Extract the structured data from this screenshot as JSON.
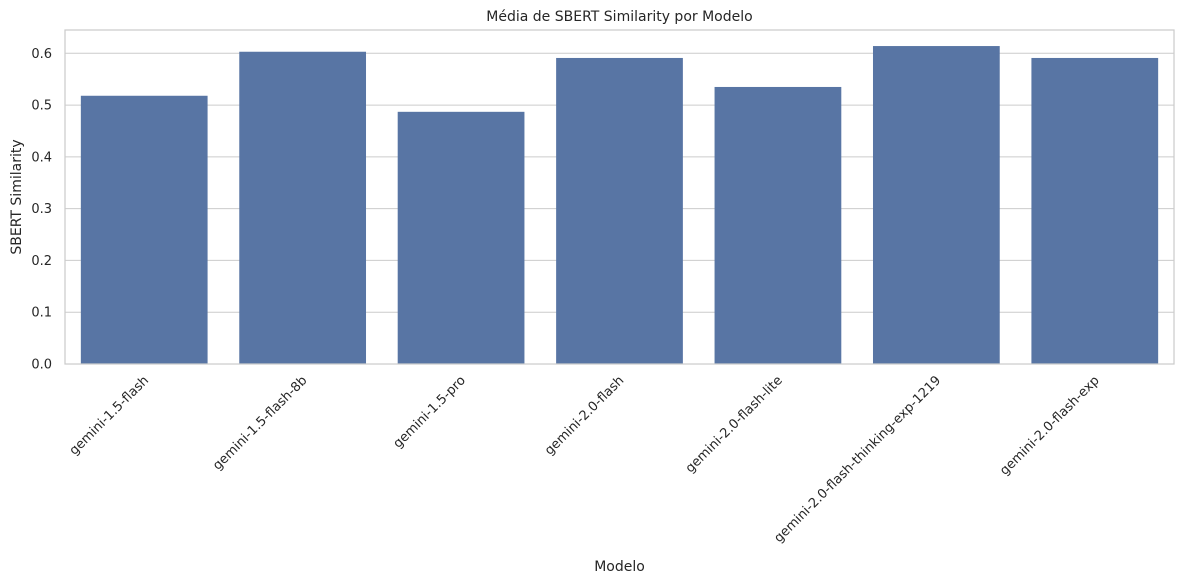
{
  "chart_data": {
    "type": "bar",
    "title": "Média de SBERT Similarity por Modelo",
    "xlabel": "Modelo",
    "ylabel": "SBERT Similarity",
    "categories": [
      "gemini-1.5-flash",
      "gemini-1.5-flash-8b",
      "gemini-1.5-pro",
      "gemini-2.0-flash",
      "gemini-2.0-flash-lite",
      "gemini-2.0-flash-thinking-exp-1219",
      "gemini-2.0-flash-exp"
    ],
    "values": [
      0.518,
      0.603,
      0.487,
      0.591,
      0.535,
      0.614,
      0.591
    ],
    "ylim": [
      0,
      0.645
    ],
    "yticks": [
      "0.0",
      "0.1",
      "0.2",
      "0.3",
      "0.4",
      "0.5",
      "0.6"
    ],
    "grid": true,
    "bar_color": "#5875a4",
    "grid_color": "#cccccc"
  }
}
